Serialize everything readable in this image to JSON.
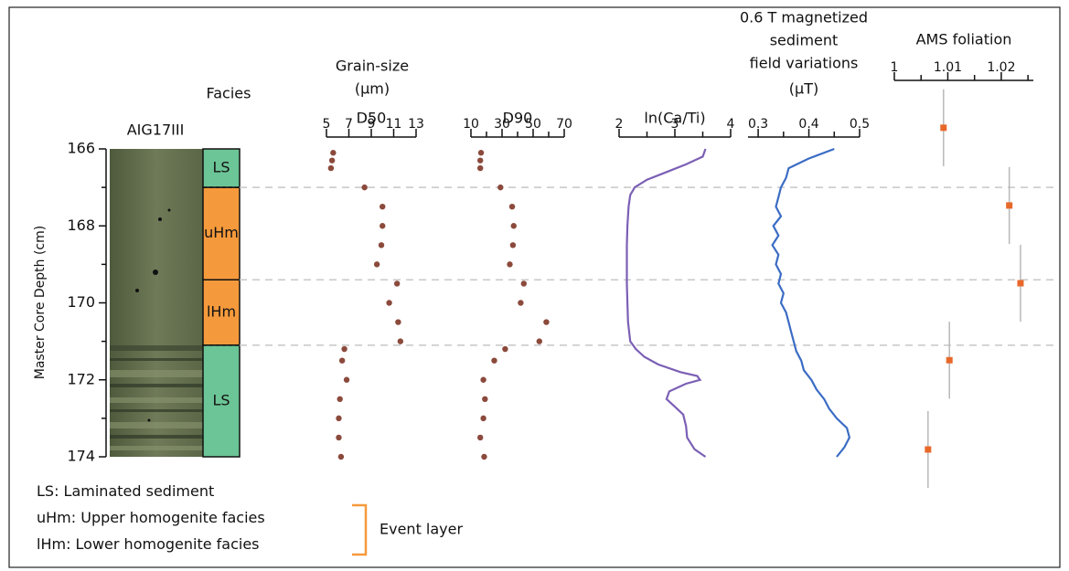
{
  "core_label": "AIG17III",
  "depth_axis": {
    "label": "Master Core Depth (cm)",
    "ylim": [
      166,
      174
    ],
    "yticks": [
      166,
      168,
      170,
      172,
      174
    ],
    "minor_ticks": [
      167,
      169,
      171,
      173
    ]
  },
  "facies": {
    "title": "Facies",
    "layers": [
      {
        "label": "LS",
        "top": 166,
        "bottom": 167,
        "color": "#6cc596"
      },
      {
        "label": "uHm",
        "top": 167,
        "bottom": 169.4,
        "color": "#f59a3c"
      },
      {
        "label": "lHm",
        "top": 169.4,
        "bottom": 171.1,
        "color": "#f59a3c"
      },
      {
        "label": "LS",
        "top": 171.1,
        "bottom": 174,
        "color": "#6cc596"
      }
    ]
  },
  "boundaries": [
    167,
    169.4,
    171.1
  ],
  "grain_size_title": [
    "Grain-size",
    "(μm)"
  ],
  "chart_data": [
    {
      "type": "scatter",
      "title": [
        "D50"
      ],
      "color": "#8b4a3c",
      "depth": [
        166.1,
        166.3,
        166.5,
        167.0,
        167.5,
        168.0,
        168.5,
        169.0,
        169.5,
        170.0,
        170.5,
        171.0,
        171.2,
        171.5,
        172.0,
        172.5,
        173.0,
        173.5,
        174.0
      ],
      "values": [
        5.6,
        5.5,
        5.4,
        8.4,
        10.0,
        10.0,
        9.9,
        9.5,
        11.3,
        10.6,
        11.4,
        11.6,
        6.6,
        6.4,
        6.8,
        6.2,
        6.1,
        6.1,
        6.3
      ],
      "xlim": [
        5,
        13
      ],
      "xticks": [
        5,
        7,
        9,
        11,
        13
      ],
      "minor_ticks": []
    },
    {
      "type": "scatter",
      "title": [
        "D90"
      ],
      "color": "#8b4a3c",
      "depth": [
        166.1,
        166.3,
        166.5,
        167.0,
        167.5,
        168.0,
        168.5,
        169.0,
        169.5,
        170.0,
        170.5,
        171.0,
        171.2,
        171.5,
        172.0,
        172.5,
        173.0,
        173.5,
        174.0
      ],
      "values": [
        16.5,
        16,
        16,
        29,
        36.5,
        37.5,
        37,
        35,
        44,
        42,
        58.5,
        54,
        32,
        25,
        18,
        19,
        18,
        16,
        18.5
      ],
      "xlim": [
        10,
        70
      ],
      "xticks": [
        10,
        30,
        50,
        70
      ],
      "minor_ticks": [
        20,
        40,
        60
      ]
    },
    {
      "type": "line",
      "title": [
        "ln(Ca/Ti)"
      ],
      "color": "#7b5fb5",
      "depth": [
        166,
        166.2,
        166.4,
        166.6,
        166.8,
        167,
        167.2,
        167.5,
        168,
        168.5,
        169,
        169.5,
        170,
        170.5,
        171,
        171.2,
        171.4,
        171.6,
        171.8,
        171.9,
        172,
        172.1,
        172.3,
        172.5,
        172.7,
        172.9,
        173.2,
        173.5,
        173.8,
        174
      ],
      "values": [
        3.55,
        3.5,
        3.2,
        2.85,
        2.5,
        2.28,
        2.2,
        2.17,
        2.15,
        2.14,
        2.14,
        2.14,
        2.15,
        2.16,
        2.2,
        2.3,
        2.45,
        2.7,
        3.1,
        3.4,
        3.45,
        3.2,
        2.9,
        2.85,
        3.0,
        3.15,
        3.2,
        3.22,
        3.35,
        3.55
      ],
      "xlim": [
        2,
        4
      ],
      "xticks": [
        2,
        3,
        4
      ],
      "minor_ticks": [
        2.5,
        3.5
      ]
    },
    {
      "type": "line",
      "title": [
        "0.6 T magnetized",
        "sediment",
        "field variations",
        "(μT)"
      ],
      "color": "#3b6cc4",
      "depth": [
        166,
        166.25,
        166.5,
        166.75,
        167,
        167.25,
        167.5,
        167.75,
        168,
        168.25,
        168.5,
        168.75,
        169,
        169.25,
        169.5,
        169.75,
        170,
        170.25,
        170.5,
        170.75,
        171,
        171.25,
        171.5,
        171.75,
        172,
        172.25,
        172.5,
        172.75,
        173,
        173.25,
        173.5,
        173.75,
        174
      ],
      "values": [
        0.45,
        0.4,
        0.36,
        0.355,
        0.345,
        0.34,
        0.335,
        0.345,
        0.33,
        0.34,
        0.328,
        0.34,
        0.335,
        0.345,
        0.34,
        0.35,
        0.345,
        0.355,
        0.36,
        0.365,
        0.37,
        0.375,
        0.385,
        0.39,
        0.405,
        0.415,
        0.43,
        0.44,
        0.455,
        0.475,
        0.48,
        0.47,
        0.455
      ],
      "xlim": [
        0.28,
        0.5
      ],
      "xticks": [
        0.3,
        0.4,
        0.5
      ],
      "minor_ticks": [
        0.35,
        0.45
      ]
    },
    {
      "type": "errorbar",
      "title": [
        "AMS foliation"
      ],
      "color": "#e8682a",
      "error_color": "#b8b8b8",
      "depth": [
        165.45,
        167.47,
        169.49,
        171.49,
        173.81
      ],
      "depth_err": [
        1,
        1,
        1,
        1,
        1
      ],
      "values": [
        1.0092,
        1.0215,
        1.0236,
        1.0103,
        1.0063
      ],
      "xlim": [
        1,
        1.026
      ],
      "xticks": [
        1,
        1.01,
        1.02
      ],
      "minor_ticks": [
        1.005,
        1.015,
        1.025
      ]
    }
  ],
  "legend": {
    "items": [
      {
        "abbr": "LS",
        "text": ": Laminated sediment"
      },
      {
        "abbr": "uHm",
        "text": ": Upper homogenite facies"
      },
      {
        "abbr": "lHm",
        "text": ": Lower homogenite facies"
      }
    ],
    "event_label": "Event layer"
  }
}
